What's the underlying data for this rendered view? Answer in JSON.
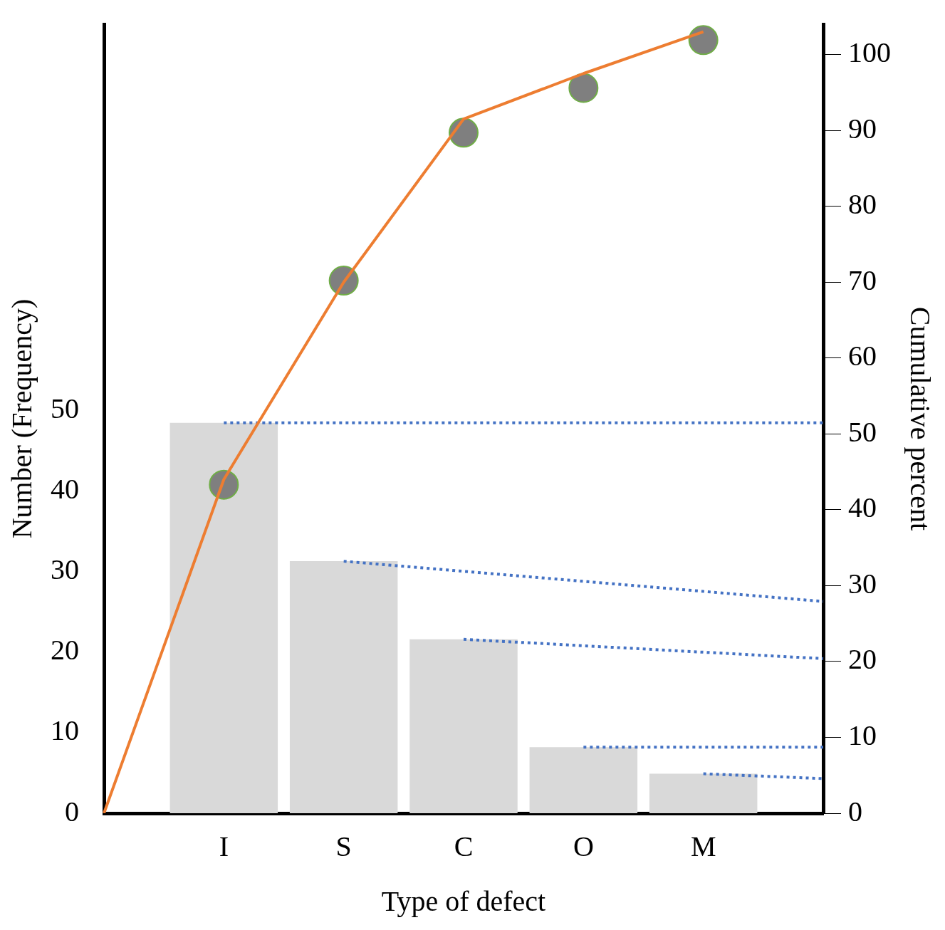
{
  "chart_data": {
    "type": "bar",
    "xlabel": "Type of defect",
    "ylabel": "Number (Frequency)",
    "y2label": "Cumulative percent",
    "categories": [
      null,
      "I",
      "S",
      "C",
      "O",
      "M",
      null
    ],
    "series": [
      {
        "color": "#d9d9d9",
        "values": [
          null,
          48.5,
          31.3,
          21.6,
          8.2,
          4.9,
          null
        ]
      },
      {
        "type": "line",
        "color": "#ed7d31",
        "axis": "y2",
        "marker": "none",
        "line_style": "solid",
        "values": [
          0,
          44,
          70,
          91.5,
          97.5,
          103,
          null
        ]
      },
      {
        "type": "scatter",
        "color": "#7f7f7f",
        "axis": "y2",
        "marker": "circle",
        "values": [
          null,
          43.3,
          70.2,
          89.7,
          95.6,
          101.9,
          null
        ]
      },
      {
        "type": "line",
        "color": "#4472c4",
        "marker": "none",
        "line_style": "dotted",
        "values": [
          null,
          48.5,
          48.5,
          48.5,
          48.5,
          48.5,
          48.5
        ]
      },
      {
        "type": "line",
        "color": "#4472c4",
        "marker": "none",
        "line_style": "dotted",
        "values": [
          null,
          null,
          31.3,
          null,
          null,
          null,
          26.3
        ]
      },
      {
        "type": "line",
        "color": "#4472c4",
        "marker": "none",
        "line_style": "dotted",
        "values": [
          null,
          null,
          null,
          21.6,
          null,
          null,
          19.2
        ]
      },
      {
        "type": "line",
        "color": "#4472c4",
        "marker": "none",
        "line_style": "dotted",
        "values": [
          null,
          null,
          null,
          null,
          8.2,
          8.2,
          8.2
        ]
      },
      {
        "type": "line",
        "color": "#4472c4",
        "marker": "none",
        "line_style": "dotted",
        "values": [
          null,
          null,
          null,
          null,
          null,
          4.9,
          4.3
        ]
      }
    ],
    "ylim": [
      0,
      98
    ],
    "yticks": [
      0,
      10,
      20,
      30,
      40,
      50
    ],
    "y2lim": [
      0,
      104
    ],
    "y2ticks": [
      0,
      10,
      20,
      30,
      40,
      50,
      60,
      70,
      80,
      90,
      100
    ],
    "grid": false,
    "legend": false
  }
}
